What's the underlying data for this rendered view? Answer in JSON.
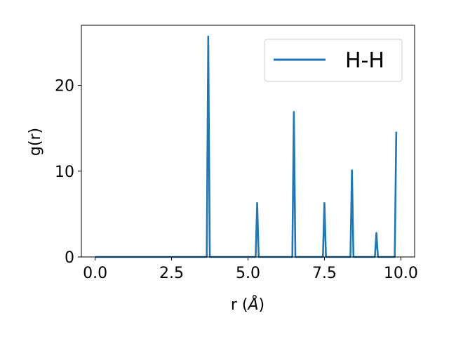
{
  "chart_data": {
    "type": "line",
    "xlabel": "r (",
    "xlabel_unit": "Å",
    "xlabel_close": ")",
    "ylabel": "g(r)",
    "xlim": [
      -0.45,
      10.45
    ],
    "ylim": [
      0,
      27.0
    ],
    "x_ticks": [
      0.0,
      2.5,
      5.0,
      7.5,
      10.0
    ],
    "x_tick_labels": [
      "0.0",
      "2.5",
      "5.0",
      "7.5",
      "10.0"
    ],
    "y_ticks": [
      0,
      10,
      20
    ],
    "y_tick_labels": [
      "0",
      "10",
      "20"
    ],
    "grid": false,
    "legend_position": "top-right",
    "colors": {
      "series": "#1f77b4",
      "axes": "#000000",
      "background": "#ffffff"
    },
    "series": [
      {
        "name": "H-H",
        "x": [
          0.0,
          3.65,
          3.7,
          3.75,
          5.25,
          5.3,
          5.35,
          6.45,
          6.5,
          6.55,
          7.45,
          7.5,
          7.55,
          8.35,
          8.4,
          8.45,
          9.15,
          9.2,
          9.25,
          9.8,
          9.85
        ],
        "y": [
          0,
          0,
          25.7,
          0,
          0,
          6.3,
          0,
          0,
          16.9,
          0,
          0,
          6.3,
          0,
          0,
          10.1,
          0,
          0,
          2.8,
          0,
          0,
          14.6
        ]
      }
    ]
  }
}
